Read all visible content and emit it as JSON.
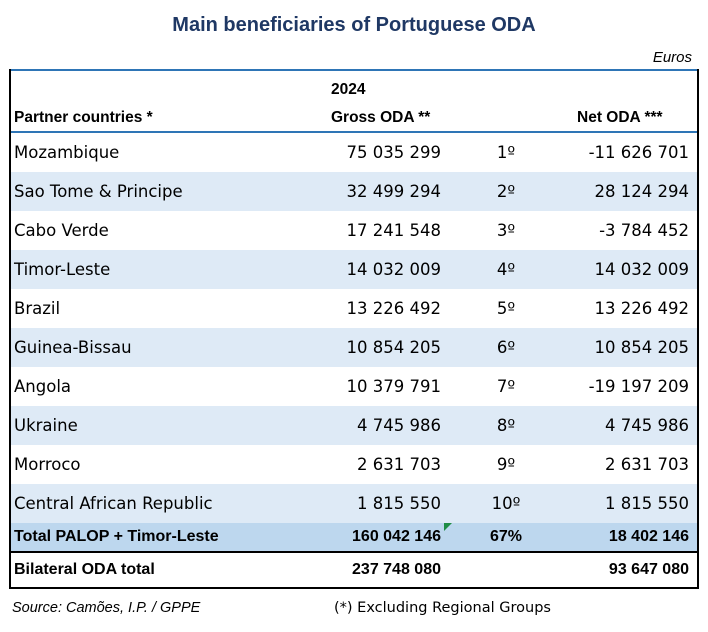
{
  "title": "Main beneficiaries of Portuguese ODA",
  "units": "Euros",
  "header": {
    "year": "2024",
    "col_country": "Partner countries *",
    "col_gross": "Gross ODA **",
    "col_net": "Net ODA ***"
  },
  "rows": [
    {
      "country": "Mozambique",
      "gross": "75 035 299",
      "rank": "1º",
      "net": "-11 626 701"
    },
    {
      "country": "Sao Tome & Principe",
      "gross": "32 499 294",
      "rank": "2º",
      "net": "28 124 294"
    },
    {
      "country": "Cabo Verde",
      "gross": "17 241 548",
      "rank": "3º",
      "net": "-3 784 452"
    },
    {
      "country": "Timor-Leste",
      "gross": "14 032 009",
      "rank": "4º",
      "net": "14 032 009"
    },
    {
      "country": "Brazil",
      "gross": "13 226 492",
      "rank": "5º",
      "net": "13 226 492"
    },
    {
      "country": "Guinea-Bissau",
      "gross": "10 854 205",
      "rank": "6º",
      "net": "10 854 205"
    },
    {
      "country": "Angola",
      "gross": "10 379 791",
      "rank": "7º",
      "net": "-19 197 209"
    },
    {
      "country": "Ukraine",
      "gross": "4 745 986",
      "rank": "8º",
      "net": "4 745 986"
    },
    {
      "country": "Morroco",
      "gross": "2 631 703",
      "rank": "9º",
      "net": "2 631 703"
    },
    {
      "country": "Central African Republic",
      "gross": "1 815 550",
      "rank": "10º",
      "net": "1 815 550"
    }
  ],
  "total_palop": {
    "label": "Total PALOP + Timor-Leste",
    "gross": "160 042 146",
    "share": "67%",
    "net": "18 402 146"
  },
  "bilateral_total": {
    "label": "Bilateral ODA total",
    "gross": "237 748 080",
    "net": "93 647 080"
  },
  "footer": {
    "source": "Source: Camões, I.P. / GPPE",
    "note": "(*) Excluding Regional Groups"
  }
}
